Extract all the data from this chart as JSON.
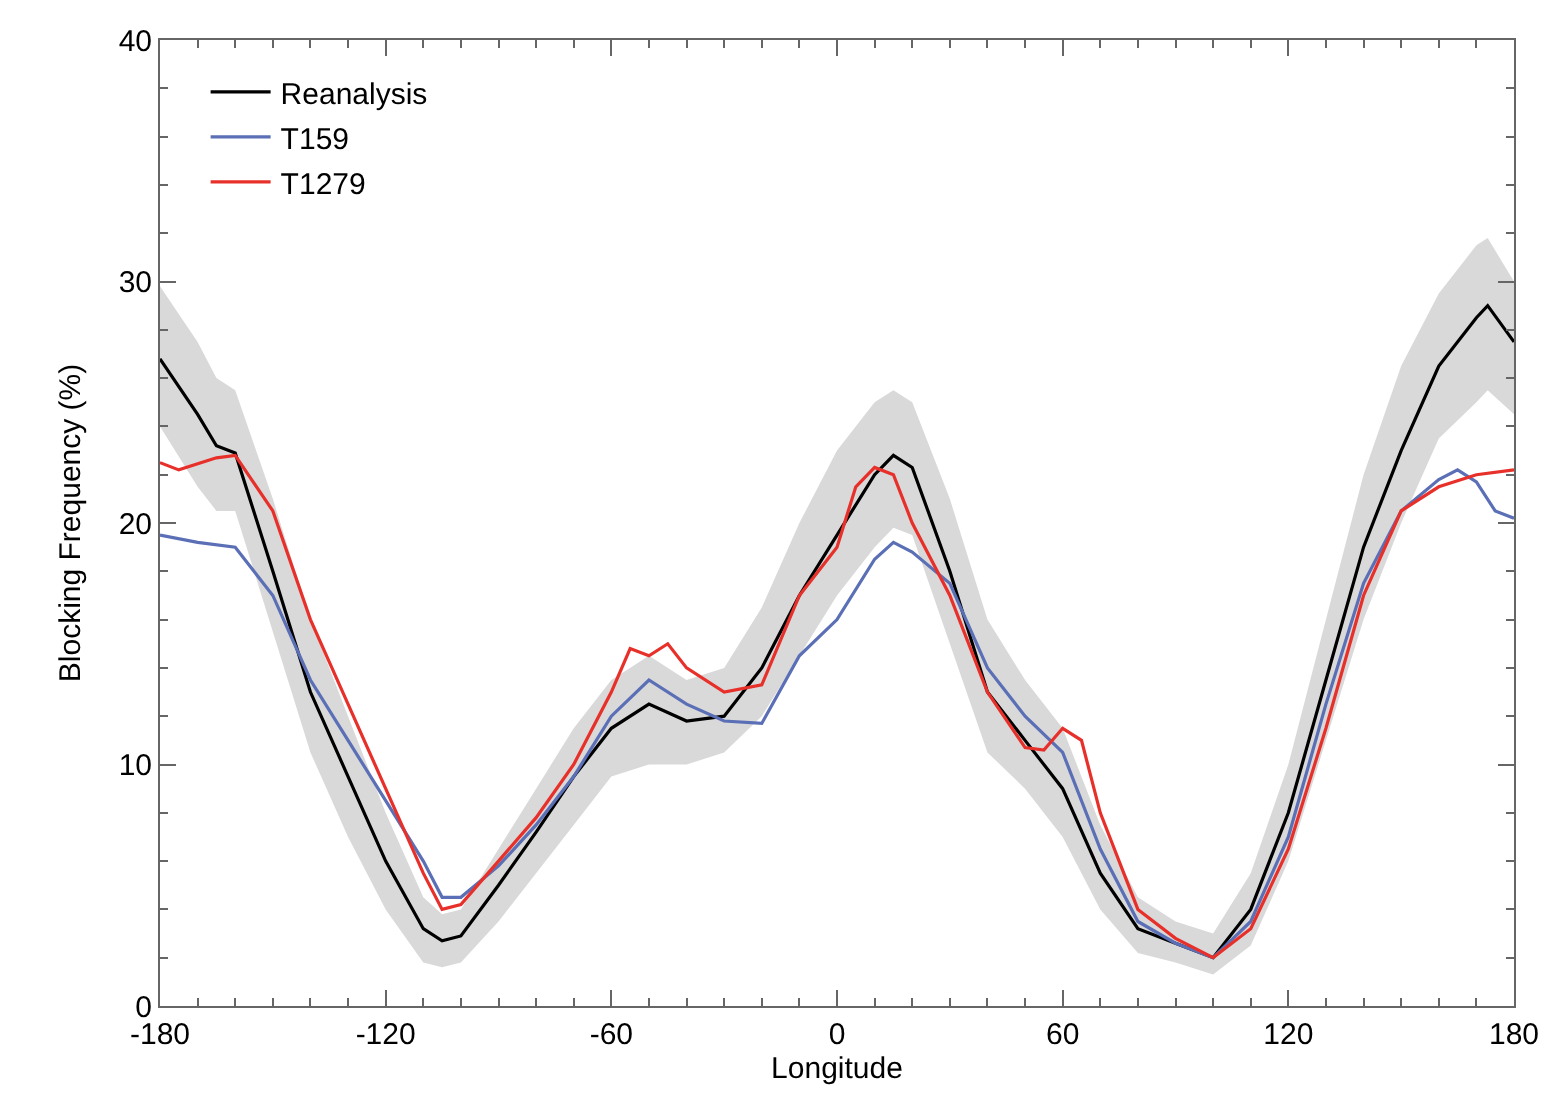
{
  "chart_data": {
    "type": "line",
    "xlabel": "Longitude",
    "ylabel": "Blocking Frequency (%)",
    "xlim": [
      -180,
      180
    ],
    "xticks": [
      -180,
      -120,
      -60,
      0,
      60,
      120,
      180
    ],
    "ylim": [
      0,
      40
    ],
    "yticks": [
      0,
      10,
      20,
      30,
      40
    ],
    "grid": false,
    "legend": "top left",
    "marker": "none",
    "line_style": "solid",
    "series": [
      {
        "name": "Reanalysis",
        "color": "#000000",
        "x": [
          -180,
          -170,
          -165,
          -160,
          -150,
          -140,
          -130,
          -120,
          -110,
          -105,
          -100,
          -90,
          -80,
          -70,
          -60,
          -50,
          -40,
          -30,
          -20,
          -10,
          0,
          10,
          15,
          20,
          30,
          40,
          50,
          60,
          70,
          80,
          90,
          100,
          110,
          120,
          130,
          140,
          150,
          160,
          170,
          173,
          180
        ],
        "values": [
          26.8,
          24.5,
          23.2,
          22.9,
          18,
          13,
          9.5,
          6,
          3.2,
          2.7,
          2.9,
          5,
          7.2,
          9.5,
          11.5,
          12.5,
          11.8,
          12,
          14,
          17,
          19.5,
          22,
          22.8,
          22.3,
          18,
          13,
          11,
          9,
          5.5,
          3.2,
          2.6,
          2,
          4,
          8,
          13.5,
          19,
          23,
          26.5,
          28.5,
          29,
          27.5
        ],
        "upper": [
          29.8,
          27.5,
          26,
          25.5,
          21,
          16,
          12,
          8,
          4.5,
          3.8,
          4,
          6.5,
          9,
          11.5,
          13.5,
          14.5,
          13.5,
          14,
          16.5,
          20,
          23,
          25,
          25.5,
          25,
          21,
          16,
          13.5,
          11.5,
          7.5,
          4.5,
          3.5,
          3,
          5.5,
          10,
          16,
          22,
          26.5,
          29.5,
          31.5,
          31.8,
          30
        ],
        "lower": [
          24,
          21.5,
          20.5,
          20.5,
          15.5,
          10.5,
          7,
          4,
          1.8,
          1.6,
          1.8,
          3.5,
          5.5,
          7.5,
          9.5,
          10,
          10,
          10.5,
          12,
          14.5,
          17,
          19,
          19.8,
          19.5,
          15,
          10.5,
          9,
          7,
          4,
          2.2,
          1.8,
          1.3,
          2.5,
          6,
          11,
          16,
          20,
          23.5,
          25,
          25.5,
          24.5
        ]
      },
      {
        "name": "T159",
        "color": "#5a6fb5",
        "x": [
          -180,
          -170,
          -160,
          -150,
          -140,
          -130,
          -120,
          -110,
          -105,
          -100,
          -90,
          -80,
          -70,
          -60,
          -50,
          -40,
          -30,
          -20,
          -10,
          0,
          10,
          15,
          20,
          30,
          40,
          50,
          60,
          70,
          80,
          90,
          100,
          110,
          120,
          130,
          140,
          150,
          160,
          165,
          170,
          175,
          180
        ],
        "values": [
          19.5,
          19.2,
          19,
          17,
          13.5,
          11,
          8.5,
          6,
          4.5,
          4.5,
          5.8,
          7.5,
          9.5,
          12,
          13.5,
          12.5,
          11.8,
          11.7,
          14.5,
          16,
          18.5,
          19.2,
          18.8,
          17.5,
          14,
          12,
          10.5,
          6.5,
          3.5,
          2.6,
          2,
          3.5,
          7,
          12.5,
          17.5,
          20.5,
          21.8,
          22.2,
          21.7,
          20.5,
          20.2
        ]
      },
      {
        "name": "T1279",
        "color": "#e8302a",
        "x": [
          -180,
          -175,
          -165,
          -160,
          -150,
          -140,
          -130,
          -120,
          -110,
          -105,
          -100,
          -90,
          -80,
          -70,
          -60,
          -55,
          -50,
          -45,
          -40,
          -30,
          -20,
          -10,
          0,
          5,
          10,
          15,
          20,
          30,
          40,
          50,
          55,
          60,
          65,
          70,
          80,
          90,
          100,
          110,
          120,
          130,
          140,
          150,
          160,
          170,
          180
        ],
        "values": [
          22.5,
          22.2,
          22.7,
          22.8,
          20.5,
          16,
          12.5,
          9,
          5.5,
          4,
          4.2,
          6,
          7.8,
          10,
          13,
          14.8,
          14.5,
          15,
          14,
          13,
          13.3,
          17,
          19,
          21.5,
          22.3,
          22,
          20,
          17,
          13,
          10.7,
          10.6,
          11.5,
          11,
          8,
          4,
          2.8,
          2,
          3.2,
          6.5,
          11.5,
          17,
          20.5,
          21.5,
          22,
          22.2
        ]
      }
    ]
  }
}
